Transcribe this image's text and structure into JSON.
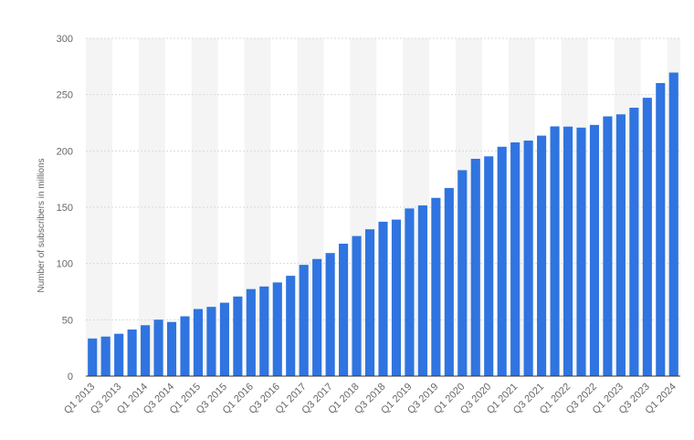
{
  "chart_data": {
    "type": "bar",
    "ylabel": "Number of subscribers in millions",
    "ylim": [
      0,
      300
    ],
    "yticks": [
      0,
      50,
      100,
      150,
      200,
      250,
      300
    ],
    "grid": true,
    "bar_color": "#2f74e0",
    "band_color": "#f4f4f4",
    "categories": [
      "Q1 2013",
      "Q2 2013",
      "Q3 2013",
      "Q4 2013",
      "Q1 2014",
      "Q2 2014",
      "Q3 2014",
      "Q4 2014",
      "Q1 2015",
      "Q2 2015",
      "Q3 2015",
      "Q4 2015",
      "Q1 2016",
      "Q2 2016",
      "Q3 2016",
      "Q4 2016",
      "Q1 2017",
      "Q2 2017",
      "Q3 2017",
      "Q4 2017",
      "Q1 2018",
      "Q2 2018",
      "Q3 2018",
      "Q4 2018",
      "Q1 2019",
      "Q2 2019",
      "Q3 2019",
      "Q4 2019",
      "Q1 2020",
      "Q2 2020",
      "Q3 2020",
      "Q4 2020",
      "Q1 2021",
      "Q2 2021",
      "Q3 2021",
      "Q4 2021",
      "Q1 2022",
      "Q2 2022",
      "Q3 2022",
      "Q4 2022",
      "Q1 2023",
      "Q2 2023",
      "Q3 2023",
      "Q4 2023",
      "Q1 2024"
    ],
    "tick_labels_shown": [
      "Q1 2013",
      "Q3 2013",
      "Q1 2014",
      "Q3 2014",
      "Q1 2015",
      "Q3 2015",
      "Q1 2016",
      "Q3 2016",
      "Q1 2017",
      "Q3 2017",
      "Q1 2018",
      "Q3 2018",
      "Q1 2019",
      "Q3 2019",
      "Q1 2020",
      "Q3 2020",
      "Q1 2021",
      "Q3 2021",
      "Q1 2022",
      "Q3 2022",
      "Q1 2023",
      "Q3 2023",
      "Q1 2024"
    ],
    "values": [
      33.4,
      35.1,
      37.6,
      41.4,
      45.2,
      50.1,
      48.1,
      53.1,
      59.6,
      61.5,
      65.2,
      70.7,
      77.3,
      79.6,
      83.2,
      89.1,
      98.8,
      104.0,
      109.3,
      117.6,
      124.4,
      130.4,
      137.1,
      139.0,
      148.9,
      151.6,
      158.3,
      167.1,
      182.9,
      193.0,
      195.2,
      203.7,
      207.6,
      209.2,
      213.6,
      221.8,
      221.6,
      220.7,
      223.1,
      230.7,
      232.5,
      238.4,
      247.2,
      260.3,
      269.6
    ]
  }
}
